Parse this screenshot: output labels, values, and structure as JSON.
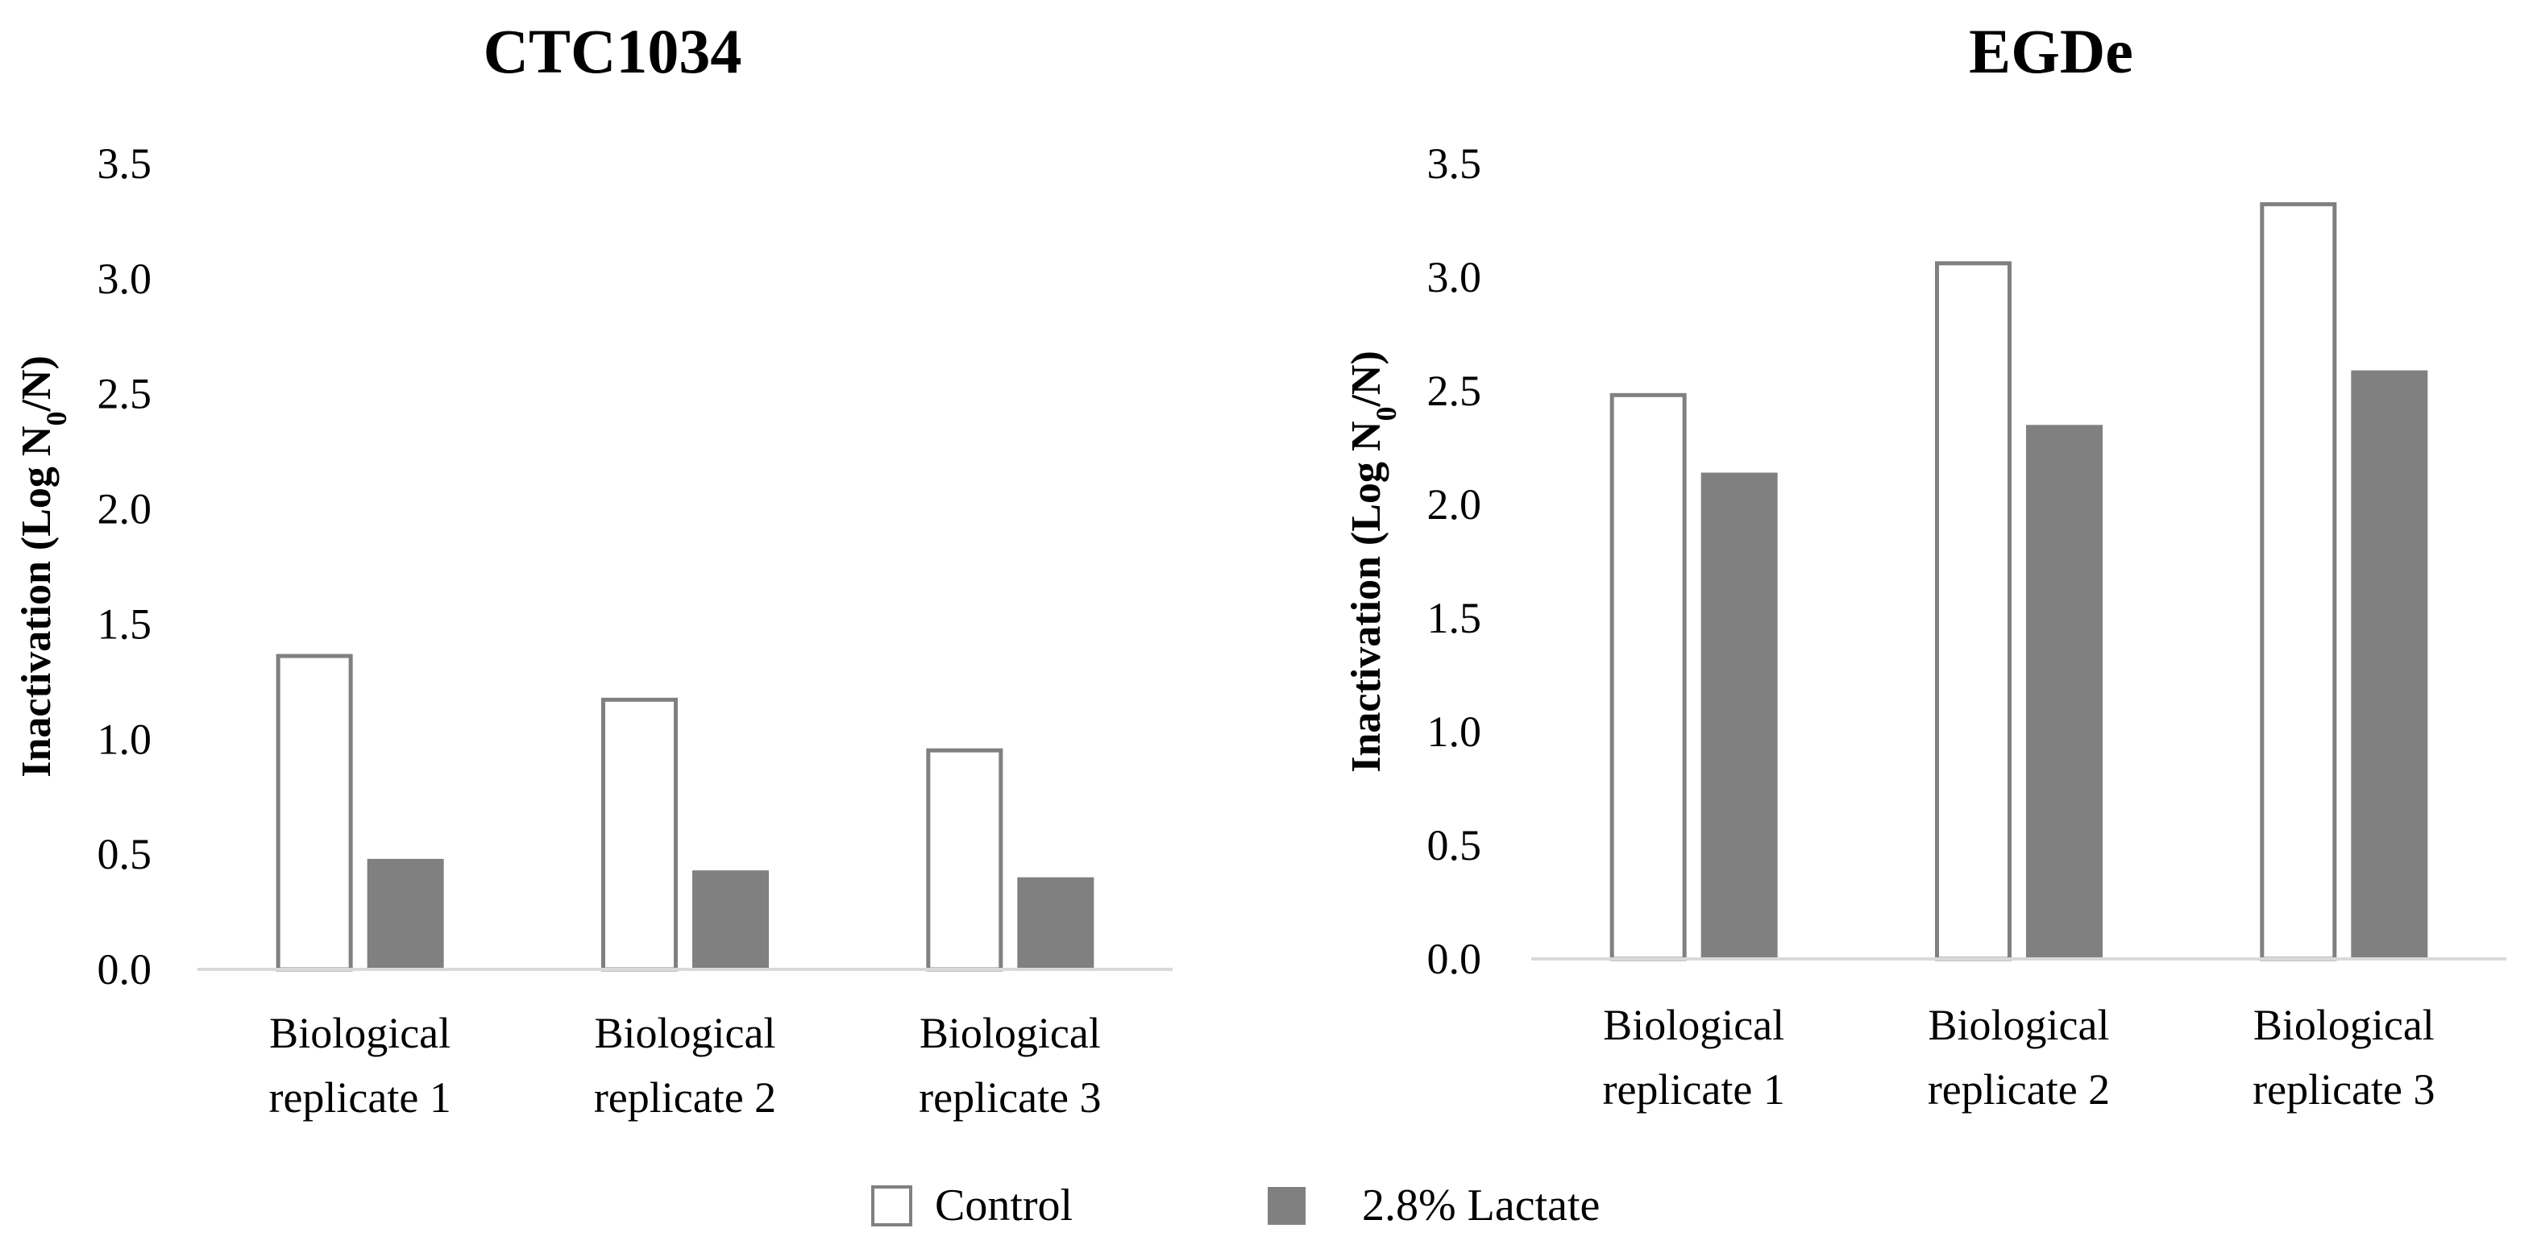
{
  "chart_data": [
    {
      "type": "bar",
      "title": "CTC1034",
      "ylabel": "Inactivation (Log N0/N)",
      "ylabel_parts": {
        "prefix": "Inactivation (Log N",
        "subscript": "0",
        "suffix": "/N)"
      },
      "xlabel": "",
      "ylim": [
        0,
        3.5
      ],
      "yticks": [
        "0.0",
        "0.5",
        "1.0",
        "1.5",
        "2.0",
        "2.5",
        "3.0",
        "3.5"
      ],
      "grid": false,
      "categories": [
        [
          "Biological",
          "replicate 1"
        ],
        [
          "Biological",
          "replicate 2"
        ],
        [
          "Biological",
          "replicate 3"
        ]
      ],
      "series": [
        {
          "name": "Control",
          "values": [
            1.37,
            1.18,
            0.96
          ]
        },
        {
          "name": "2.8% Lactate",
          "values": [
            0.48,
            0.43,
            0.4
          ]
        }
      ]
    },
    {
      "type": "bar",
      "title": "EGDe",
      "ylabel": "Inactivation (Log N0/N)",
      "ylabel_parts": {
        "prefix": "Inactivation (Log N",
        "subscript": "0",
        "suffix": "/N)"
      },
      "xlabel": "",
      "ylim": [
        0,
        3.5
      ],
      "yticks": [
        "0.0",
        "0.5",
        "1.0",
        "1.5",
        "2.0",
        "2.5",
        "3.0",
        "3.5"
      ],
      "grid": false,
      "categories": [
        [
          "Biological",
          "replicate 1"
        ],
        [
          "Biological",
          "replicate 2"
        ],
        [
          "Biological",
          "replicate 3"
        ]
      ],
      "series": [
        {
          "name": "Control",
          "values": [
            2.49,
            3.07,
            3.33
          ]
        },
        {
          "name": "2.8% Lactate",
          "values": [
            2.14,
            2.35,
            2.59
          ]
        }
      ]
    }
  ],
  "legend": {
    "placement": "bottom-center",
    "items": [
      {
        "name": "Control",
        "fill": "#ffffff",
        "stroke": "#808080"
      },
      {
        "name": "2.8% Lactate",
        "fill": "#808080",
        "stroke": "#808080"
      }
    ]
  },
  "colors": {
    "control_fill": "#ffffff",
    "control_stroke": "#808080",
    "lactate_fill": "#808080",
    "axis": "#d9d9d9",
    "text": "#000000"
  }
}
